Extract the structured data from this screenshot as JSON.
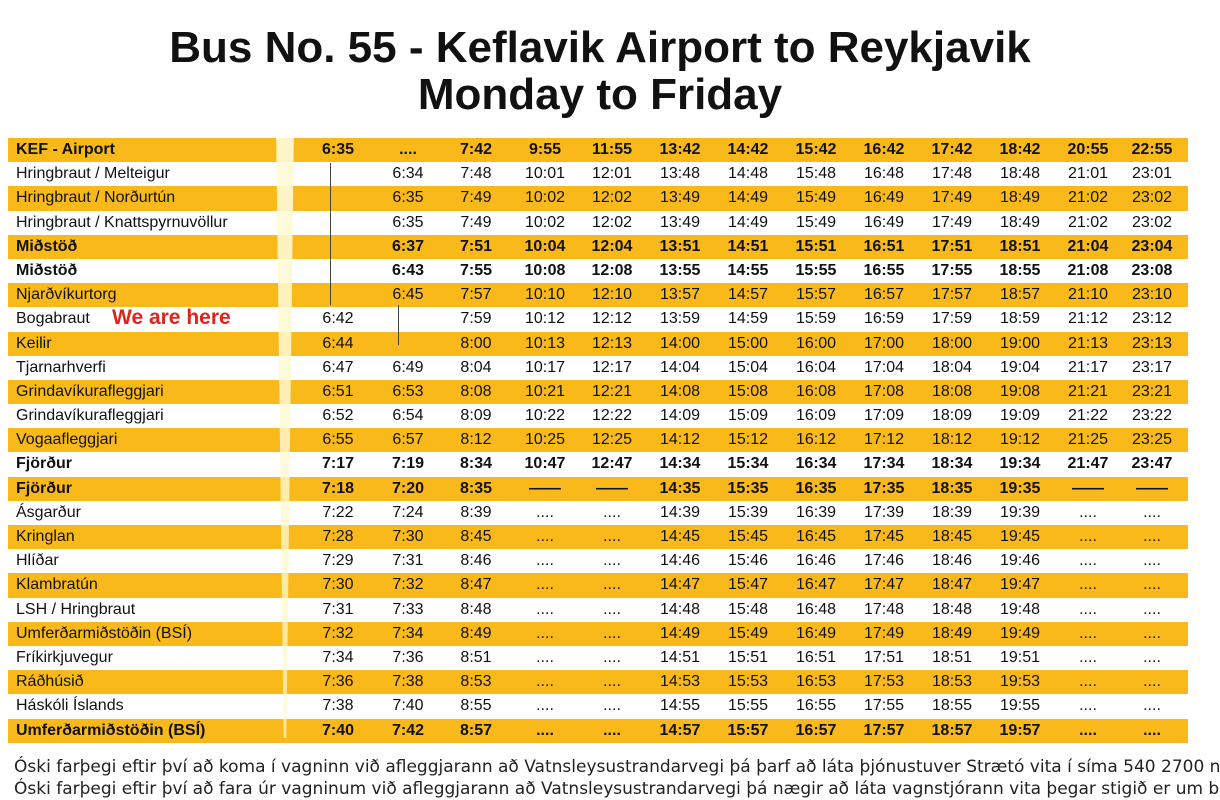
{
  "title": {
    "line1": "Bus No. 55 - Keflavik Airport to Reykjavik",
    "line2": "Monday to Friday"
  },
  "here_label": "We are here",
  "notes": [
    "Óski farþegi eftir því að koma í vagninn við afleggjarann að Vatnsleysustrandarvegi þá þarf að láta þjónustuver Strætó vita í síma 540 2700 n",
    "Óski farþegi eftir því að fara úr vagninum við afleggjarann að Vatnsleysustrandarvegi þá nægir að láta vagnstjórann vita þegar stigið er um b"
  ],
  "colors": {
    "stripe": "#f9b91b",
    "highlight": "#e2231a"
  },
  "rows": [
    {
      "stop": "KEF - Airport",
      "bold": true,
      "yellow": true,
      "times": [
        "6:35",
        "....",
        "7:42",
        "9:55",
        "11:55",
        "13:42",
        "14:42",
        "15:42",
        "16:42",
        "17:42",
        "18:42",
        "20:55",
        "22:55"
      ]
    },
    {
      "stop": "Hringbraut / Melteigur",
      "bold": false,
      "yellow": false,
      "times": [
        "",
        "6:34",
        "7:48",
        "10:01",
        "12:01",
        "13:48",
        "14:48",
        "15:48",
        "16:48",
        "17:48",
        "18:48",
        "21:01",
        "23:01"
      ]
    },
    {
      "stop": "Hringbraut / Norðurtún",
      "bold": false,
      "yellow": true,
      "times": [
        "",
        "6:35",
        "7:49",
        "10:02",
        "12:02",
        "13:49",
        "14:49",
        "15:49",
        "16:49",
        "17:49",
        "18:49",
        "21:02",
        "23:02"
      ]
    },
    {
      "stop": "Hringbraut / Knattspyrnuvöllur",
      "bold": false,
      "yellow": false,
      "times": [
        "",
        "6:35",
        "7:49",
        "10:02",
        "12:02",
        "13:49",
        "14:49",
        "15:49",
        "16:49",
        "17:49",
        "18:49",
        "21:02",
        "23:02"
      ]
    },
    {
      "stop": "Miðstöð",
      "bold": true,
      "yellow": true,
      "times": [
        "",
        "6:37",
        "7:51",
        "10:04",
        "12:04",
        "13:51",
        "14:51",
        "15:51",
        "16:51",
        "17:51",
        "18:51",
        "21:04",
        "23:04"
      ]
    },
    {
      "stop": "Miðstöð",
      "bold": true,
      "yellow": false,
      "times": [
        "",
        "6:43",
        "7:55",
        "10:08",
        "12:08",
        "13:55",
        "14:55",
        "15:55",
        "16:55",
        "17:55",
        "18:55",
        "21:08",
        "23:08"
      ]
    },
    {
      "stop": "Njarðvíkurtorg",
      "bold": false,
      "yellow": true,
      "times": [
        "",
        "6:45",
        "7:57",
        "10:10",
        "12:10",
        "13:57",
        "14:57",
        "15:57",
        "16:57",
        "17:57",
        "18:57",
        "21:10",
        "23:10"
      ]
    },
    {
      "stop": "Bogabraut",
      "bold": false,
      "yellow": false,
      "times": [
        "6:42",
        "",
        "7:59",
        "10:12",
        "12:12",
        "13:59",
        "14:59",
        "15:59",
        "16:59",
        "17:59",
        "18:59",
        "21:12",
        "23:12"
      ]
    },
    {
      "stop": "Keilir",
      "bold": false,
      "yellow": true,
      "times": [
        "6:44",
        "",
        "8:00",
        "10:13",
        "12:13",
        "14:00",
        "15:00",
        "16:00",
        "17:00",
        "18:00",
        "19:00",
        "21:13",
        "23:13"
      ]
    },
    {
      "stop": "Tjarnarhverfi",
      "bold": false,
      "yellow": false,
      "times": [
        "6:47",
        "6:49",
        "8:04",
        "10:17",
        "12:17",
        "14:04",
        "15:04",
        "16:04",
        "17:04",
        "18:04",
        "19:04",
        "21:17",
        "23:17"
      ]
    },
    {
      "stop": "Grindavíkurafleggjari",
      "bold": false,
      "yellow": true,
      "times": [
        "6:51",
        "6:53",
        "8:08",
        "10:21",
        "12:21",
        "14:08",
        "15:08",
        "16:08",
        "17:08",
        "18:08",
        "19:08",
        "21:21",
        "23:21"
      ]
    },
    {
      "stop": "Grindavíkurafleggjari",
      "bold": false,
      "yellow": false,
      "times": [
        "6:52",
        "6:54",
        "8:09",
        "10:22",
        "12:22",
        "14:09",
        "15:09",
        "16:09",
        "17:09",
        "18:09",
        "19:09",
        "21:22",
        "23:22"
      ]
    },
    {
      "stop": "Vogaafleggjari",
      "bold": false,
      "yellow": true,
      "times": [
        "6:55",
        "6:57",
        "8:12",
        "10:25",
        "12:25",
        "14:12",
        "15:12",
        "16:12",
        "17:12",
        "18:12",
        "19:12",
        "21:25",
        "23:25"
      ]
    },
    {
      "stop": "Fjörður",
      "bold": true,
      "yellow": false,
      "times": [
        "7:17",
        "7:19",
        "8:34",
        "10:47",
        "12:47",
        "14:34",
        "15:34",
        "16:34",
        "17:34",
        "18:34",
        "19:34",
        "21:47",
        "23:47"
      ]
    },
    {
      "stop": "Fjörður",
      "bold": true,
      "yellow": true,
      "times": [
        "7:18",
        "7:20",
        "8:35",
        "——",
        "——",
        "14:35",
        "15:35",
        "16:35",
        "17:35",
        "18:35",
        "19:35",
        "——",
        "——"
      ]
    },
    {
      "stop": "Ásgarður",
      "bold": false,
      "yellow": false,
      "times": [
        "7:22",
        "7:24",
        "8:39",
        "....",
        "....",
        "14:39",
        "15:39",
        "16:39",
        "17:39",
        "18:39",
        "19:39",
        "....",
        "...."
      ]
    },
    {
      "stop": "Kringlan",
      "bold": false,
      "yellow": true,
      "times": [
        "7:28",
        "7:30",
        "8:45",
        "....",
        "....",
        "14:45",
        "15:45",
        "16:45",
        "17:45",
        "18:45",
        "19:45",
        "....",
        "...."
      ]
    },
    {
      "stop": "Hlíðar",
      "bold": false,
      "yellow": false,
      "times": [
        "7:29",
        "7:31",
        "8:46",
        "....",
        "....",
        "14:46",
        "15:46",
        "16:46",
        "17:46",
        "18:46",
        "19:46",
        "....",
        "...."
      ]
    },
    {
      "stop": "Klambratún",
      "bold": false,
      "yellow": true,
      "times": [
        "7:30",
        "7:32",
        "8:47",
        "....",
        "....",
        "14:47",
        "15:47",
        "16:47",
        "17:47",
        "18:47",
        "19:47",
        "....",
        "...."
      ]
    },
    {
      "stop": "LSH / Hringbraut",
      "bold": false,
      "yellow": false,
      "times": [
        "7:31",
        "7:33",
        "8:48",
        "....",
        "....",
        "14:48",
        "15:48",
        "16:48",
        "17:48",
        "18:48",
        "19:48",
        "....",
        "...."
      ]
    },
    {
      "stop": "Umferðarmiðstöðin (BSÍ)",
      "bold": false,
      "yellow": true,
      "times": [
        "7:32",
        "7:34",
        "8:49",
        "....",
        "....",
        "14:49",
        "15:49",
        "16:49",
        "17:49",
        "18:49",
        "19:49",
        "....",
        "...."
      ]
    },
    {
      "stop": "Fríkirkjuvegur",
      "bold": false,
      "yellow": false,
      "times": [
        "7:34",
        "7:36",
        "8:51",
        "....",
        "....",
        "14:51",
        "15:51",
        "16:51",
        "17:51",
        "18:51",
        "19:51",
        "....",
        "...."
      ]
    },
    {
      "stop": "Ráðhúsið",
      "bold": false,
      "yellow": true,
      "times": [
        "7:36",
        "7:38",
        "8:53",
        "....",
        "....",
        "14:53",
        "15:53",
        "16:53",
        "17:53",
        "18:53",
        "19:53",
        "....",
        "...."
      ]
    },
    {
      "stop": "Háskóli Íslands",
      "bold": false,
      "yellow": false,
      "times": [
        "7:38",
        "7:40",
        "8:55",
        "....",
        "....",
        "14:55",
        "15:55",
        "16:55",
        "17:55",
        "18:55",
        "19:55",
        "....",
        "...."
      ]
    },
    {
      "stop": "Umferðarmiðstöðin (BSÍ)",
      "bold": true,
      "yellow": true,
      "times": [
        "7:40",
        "7:42",
        "8:57",
        "....",
        "....",
        "14:57",
        "15:57",
        "16:57",
        "17:57",
        "18:57",
        "19:57",
        "....",
        "...."
      ]
    }
  ]
}
